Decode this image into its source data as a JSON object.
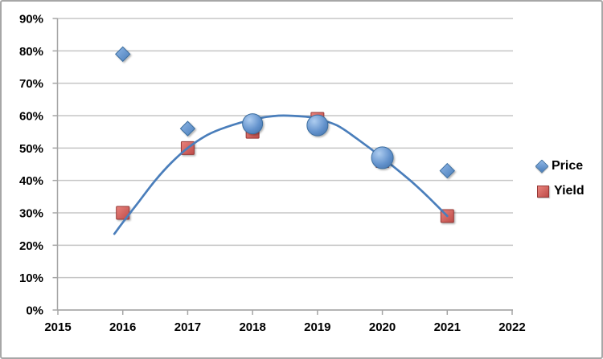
{
  "window": {
    "background": "#ffffff",
    "border_color": "#a7a7a7"
  },
  "legend": {
    "items": [
      {
        "label": "Price",
        "marker": "diamond-icon",
        "color": "#4f81bd"
      },
      {
        "label": "Yield",
        "marker": "square-icon",
        "color": "#c0504d"
      }
    ]
  },
  "chart_data": {
    "type": "scatter",
    "subtype": "combo: diamond scatter (Price) + square scatter (Yield) + bubble highlights + smooth trend line",
    "title": "",
    "xlabel": "",
    "ylabel": "",
    "xlim": [
      2015,
      2022
    ],
    "ylim": [
      0,
      90
    ],
    "grid": true,
    "legend_position": "right",
    "x_ticks": [
      "2015",
      "2016",
      "2017",
      "2018",
      "2019",
      "2020",
      "2021",
      "2022"
    ],
    "y_ticks": [
      "0%",
      "10%",
      "20%",
      "30%",
      "40%",
      "50%",
      "60%",
      "70%",
      "80%",
      "90%"
    ],
    "series": [
      {
        "name": "Price",
        "marker": "diamond",
        "color": "#4f81bd",
        "points": [
          {
            "x": 2016,
            "y": 79
          },
          {
            "x": 2017,
            "y": 56
          },
          {
            "x": 2021,
            "y": 43
          }
        ]
      },
      {
        "name": "Yield",
        "marker": "square",
        "color": "#c0504d",
        "points": [
          {
            "x": 2016,
            "y": 30
          },
          {
            "x": 2017,
            "y": 50
          },
          {
            "x": 2021,
            "y": 29
          }
        ],
        "occluded_points_behind_bubbles": [
          {
            "x": 2018,
            "y": 55
          },
          {
            "x": 2019,
            "y": 59
          },
          {
            "x": 2020,
            "y": 46
          }
        ]
      },
      {
        "name": "Bubble highlights",
        "marker": "bubble",
        "color": "#4f81bd",
        "points": [
          {
            "x": 2018,
            "y": 57.5,
            "r": 12.5
          },
          {
            "x": 2019,
            "y": 57,
            "r": 13
          },
          {
            "x": 2020,
            "y": 47,
            "r": 13.5
          }
        ]
      },
      {
        "name": "Trend line",
        "marker": "line",
        "color": "#4a7ebb",
        "points": [
          [
            2015.87,
            23.5
          ],
          [
            2016,
            27
          ],
          [
            2016.25,
            33.5
          ],
          [
            2016.5,
            40
          ],
          [
            2016.75,
            45.5
          ],
          [
            2017,
            50
          ],
          [
            2017.3,
            54
          ],
          [
            2017.6,
            56.5
          ],
          [
            2018,
            58.8
          ],
          [
            2018.4,
            60
          ],
          [
            2018.8,
            59.7
          ],
          [
            2019,
            59
          ],
          [
            2019.3,
            57
          ],
          [
            2019.6,
            53
          ],
          [
            2020,
            47
          ],
          [
            2020.4,
            40.5
          ],
          [
            2020.7,
            35
          ],
          [
            2021,
            29
          ]
        ]
      }
    ]
  }
}
